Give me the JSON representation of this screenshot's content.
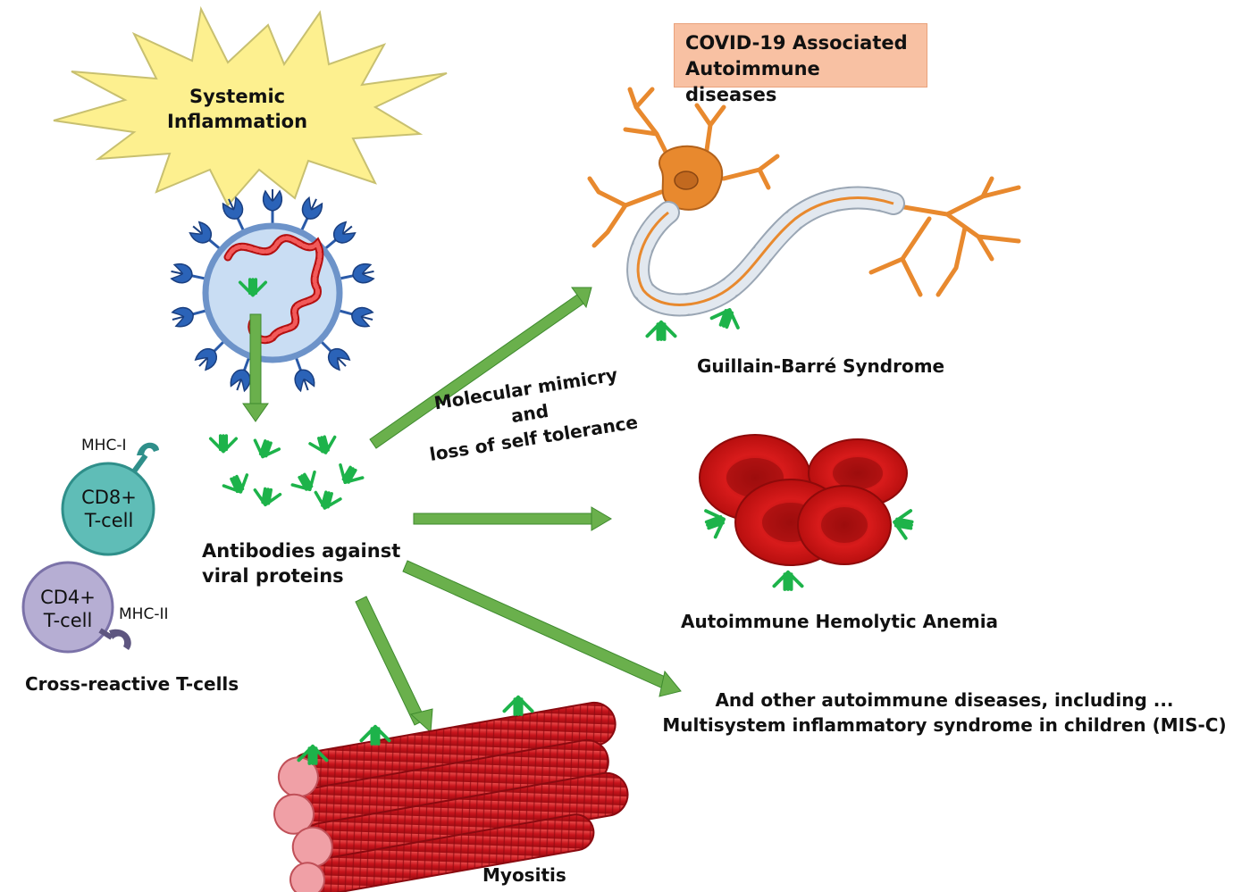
{
  "header": {
    "line1": "COVID-19 Associated",
    "line2": "Autoimmune diseases"
  },
  "inflammation": {
    "line1": "Systemic",
    "line2": "Inflammation"
  },
  "antibodies": {
    "line1": "Antibodies against",
    "line2": "viral proteins"
  },
  "mechanism": {
    "line1": "Molecular mimicry",
    "line2": "and",
    "line3": "loss of self tolerance"
  },
  "tcells": {
    "cd8_line1": "CD8+",
    "cd8_line2": "T-cell",
    "cd4_line1": "CD4+",
    "cd4_line2": "T-cell",
    "mhc1": "MHC-I",
    "mhc2": "MHC-II",
    "caption": "Cross-reactive T-cells"
  },
  "diseases": {
    "gbs": "Guillain-Barré Syndrome",
    "aiha": "Autoimmune Hemolytic Anemia",
    "other_line1": "And other autoimmune diseases, including ...",
    "other_line2": "Multisystem inflammatory syndrome in children (MIS-C)",
    "myositis": "Myositis"
  },
  "colors": {
    "arrow": "#6ab04c",
    "antibody": "#1db34a",
    "virus_spike": "#2a5aa8",
    "rna": "#e02020",
    "rbc": "#d41818",
    "neuron": "#e8892e",
    "muscle": "#d8242c",
    "cd8": "#5fbdb7",
    "cd4": "#b6aed3"
  }
}
